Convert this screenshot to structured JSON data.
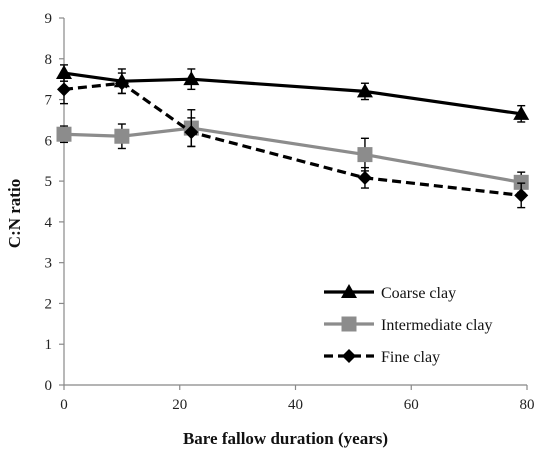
{
  "chart_data": {
    "type": "line",
    "title": "",
    "xlabel": "Bare fallow duration (years)",
    "ylabel": "C:N ratio",
    "xlim": [
      0,
      80
    ],
    "ylim": [
      0,
      9
    ],
    "x_ticks": [
      0,
      20,
      40,
      60,
      80
    ],
    "y_ticks": [
      0,
      1,
      2,
      3,
      4,
      5,
      6,
      7,
      8,
      9
    ],
    "grid": false,
    "legend_position": "bottom-right",
    "series": [
      {
        "name": "Coarse clay",
        "marker": "triangle",
        "line_style": "solid",
        "color": "#000000",
        "x": [
          0,
          10,
          22,
          52,
          79
        ],
        "y": [
          7.65,
          7.45,
          7.5,
          7.2,
          6.65
        ],
        "error": [
          0.2,
          0.3,
          0.25,
          0.2,
          0.2
        ]
      },
      {
        "name": "Intermediate clay",
        "marker": "square",
        "line_style": "solid",
        "color": "#8c8c8c",
        "x": [
          0,
          10,
          22,
          52,
          79
        ],
        "y": [
          6.15,
          6.1,
          6.3,
          5.65,
          4.97
        ],
        "error": [
          0.2,
          0.3,
          0.45,
          0.4,
          0.25
        ]
      },
      {
        "name": "Fine clay",
        "marker": "diamond",
        "line_style": "dashed",
        "color": "#000000",
        "x": [
          0,
          10,
          22,
          52,
          79
        ],
        "y": [
          7.25,
          7.4,
          6.2,
          5.08,
          4.65
        ],
        "error": [
          0.35,
          0.25,
          0.35,
          0.25,
          0.3
        ]
      }
    ]
  }
}
